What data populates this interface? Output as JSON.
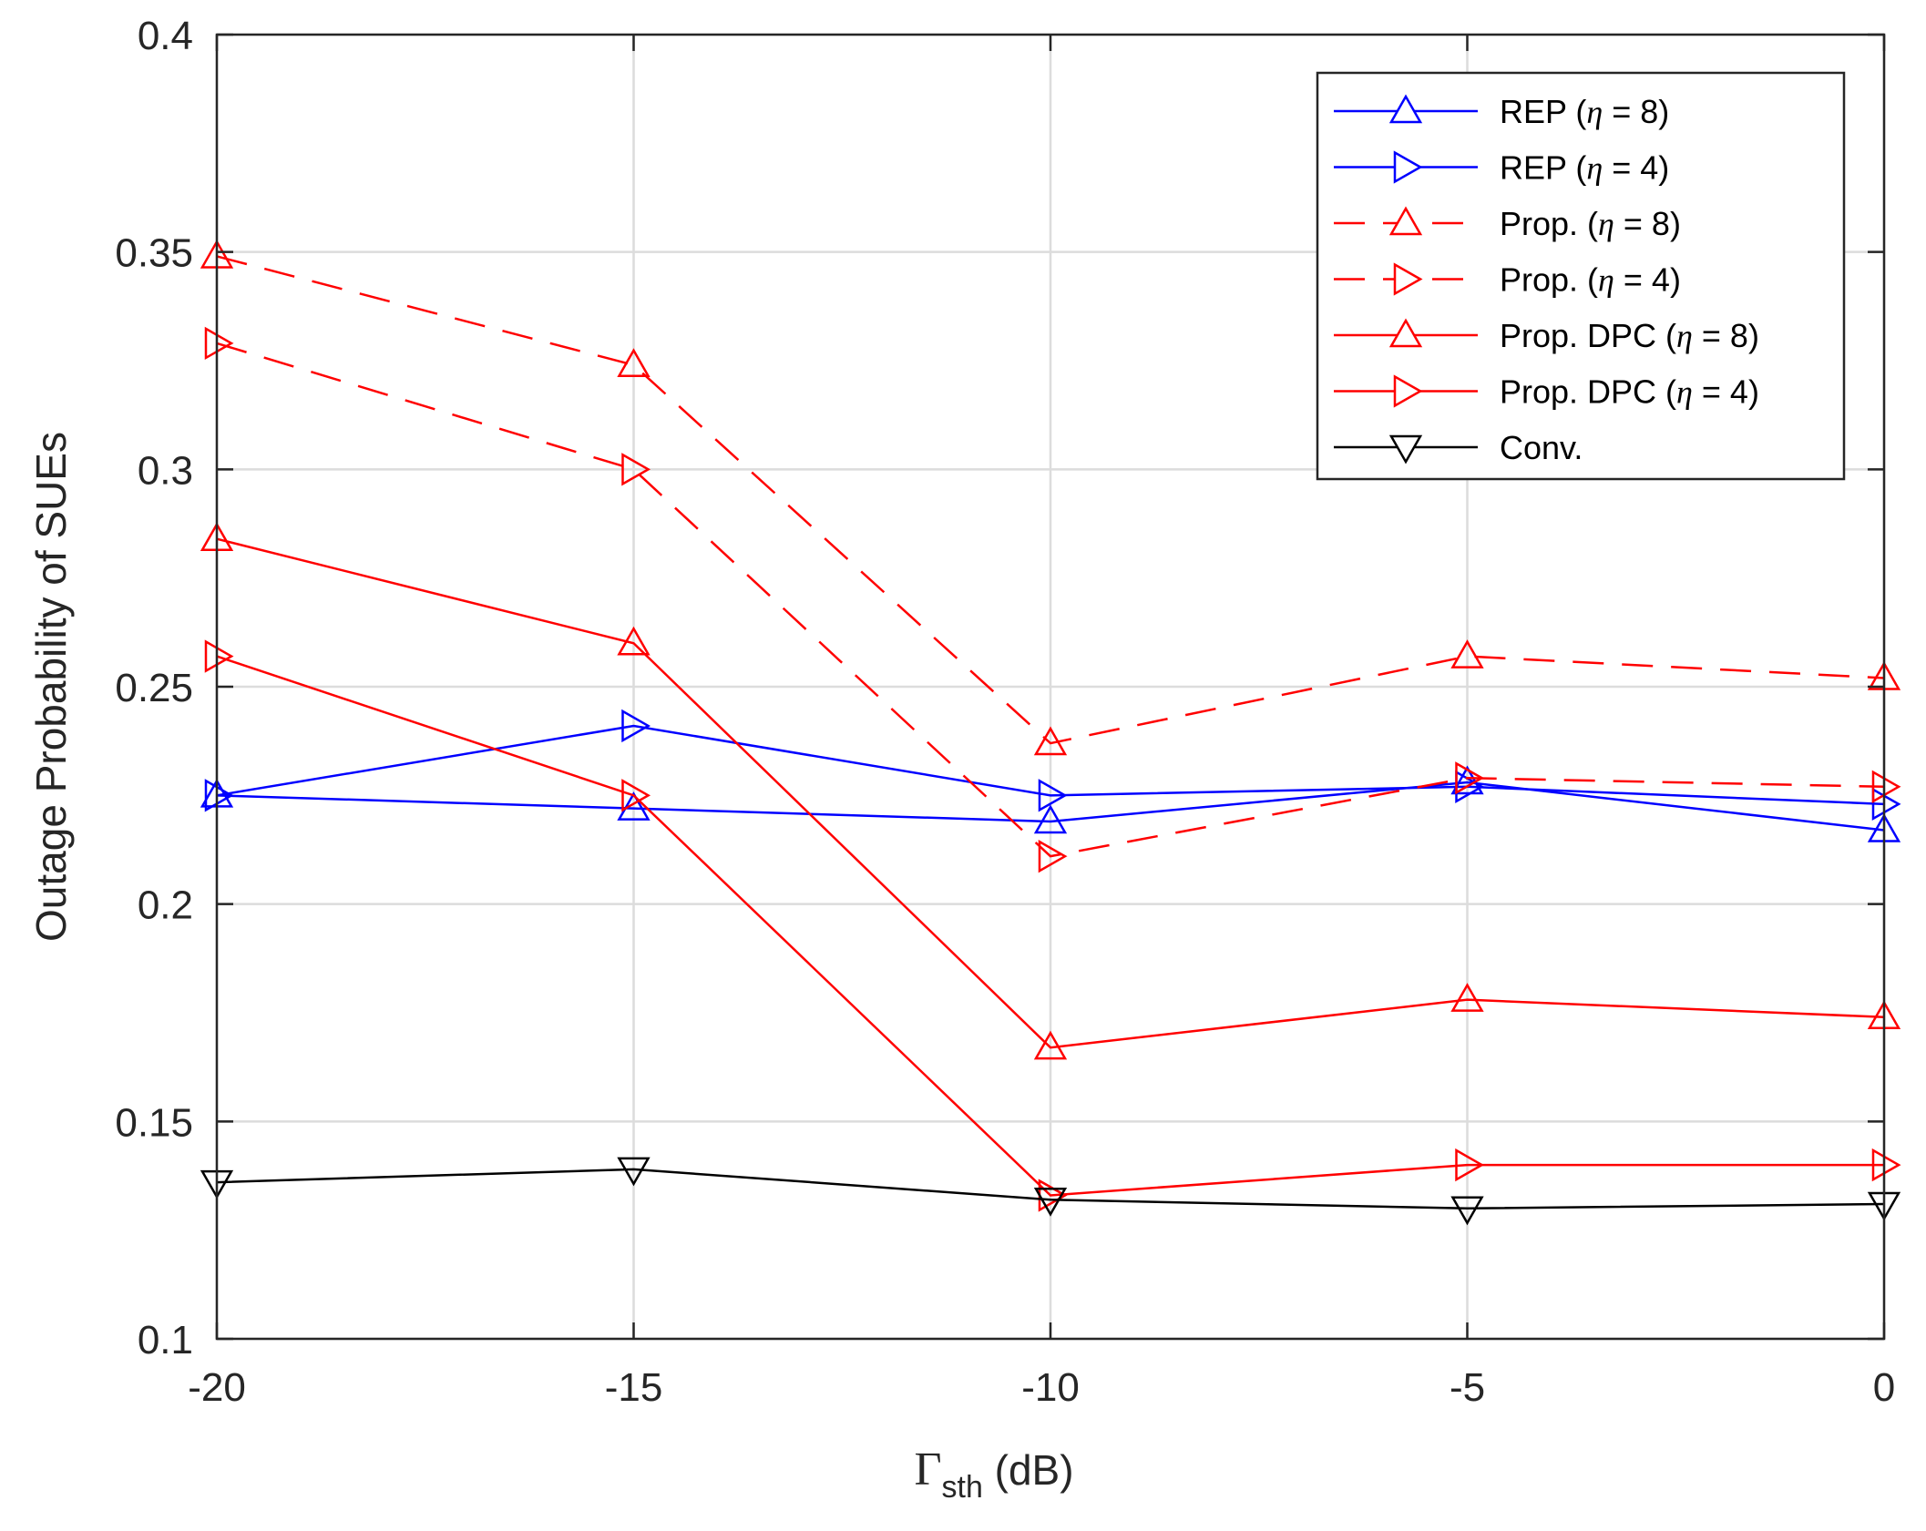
{
  "chart_data": {
    "type": "line",
    "xlabel": {
      "symbol": "Γ",
      "subscript": "sth",
      "unit": " (dB)"
    },
    "ylabel": "Outage Probability of SUEs",
    "x": [
      -20,
      -15,
      -10,
      -5,
      0
    ],
    "xlim": [
      -20,
      0
    ],
    "ylim": [
      0.1,
      0.4
    ],
    "xticks": [
      "-20",
      "-15",
      "-10",
      "-5",
      "0"
    ],
    "yticks": [
      "0.1",
      "0.15",
      "0.2",
      "0.25",
      "0.3",
      "0.35",
      "0.4"
    ],
    "grid": true,
    "legend_position": "top-right",
    "series": [
      {
        "name": "REP (η = 8)",
        "legend_prefix": "REP (",
        "eta": "8",
        "color": "#0000ff",
        "dash": "solid",
        "marker": "triangle-up",
        "values": [
          0.225,
          0.222,
          0.219,
          0.228,
          0.217
        ]
      },
      {
        "name": "REP (η = 4)",
        "legend_prefix": "REP (",
        "eta": "4",
        "color": "#0000ff",
        "dash": "solid",
        "marker": "triangle-right",
        "values": [
          0.225,
          0.241,
          0.225,
          0.227,
          0.223
        ]
      },
      {
        "name": "Prop. (η = 8)",
        "legend_prefix": "Prop. (",
        "eta": "8",
        "color": "#ff0000",
        "dash": "dashed",
        "marker": "triangle-up",
        "values": [
          0.349,
          0.324,
          0.237,
          0.257,
          0.252
        ]
      },
      {
        "name": "Prop. (η = 4)",
        "legend_prefix": "Prop. (",
        "eta": "4",
        "color": "#ff0000",
        "dash": "dashed",
        "marker": "triangle-right",
        "values": [
          0.329,
          0.3,
          0.211,
          0.229,
          0.227
        ]
      },
      {
        "name": "Prop. DPC (η = 8)",
        "legend_prefix": "Prop. DPC (",
        "eta": "8",
        "color": "#ff0000",
        "dash": "solid",
        "marker": "triangle-up",
        "values": [
          0.284,
          0.26,
          0.167,
          0.178,
          0.174
        ]
      },
      {
        "name": "Prop. DPC (η = 4)",
        "legend_prefix": "Prop. DPC (",
        "eta": "4",
        "color": "#ff0000",
        "dash": "solid",
        "marker": "triangle-right",
        "values": [
          0.257,
          0.225,
          0.133,
          0.14,
          0.14
        ]
      },
      {
        "name": "Conv.",
        "legend_prefix": "Conv.",
        "eta": "",
        "color": "#000000",
        "dash": "solid",
        "marker": "triangle-down",
        "values": [
          0.136,
          0.139,
          0.132,
          0.13,
          0.131
        ]
      }
    ]
  }
}
